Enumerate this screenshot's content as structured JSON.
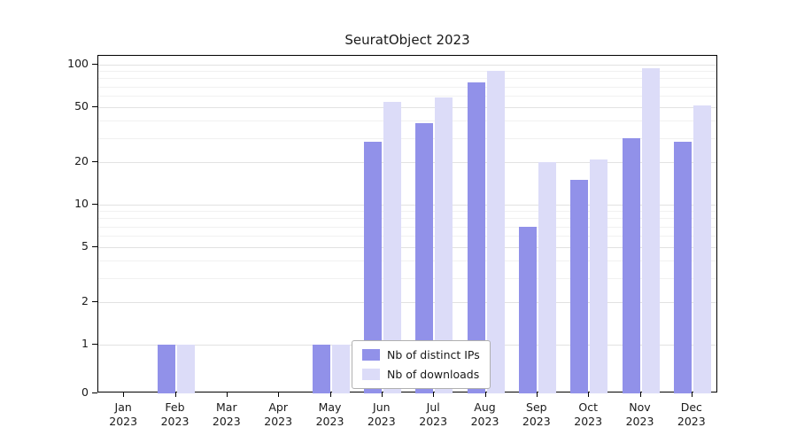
{
  "chart_data": {
    "type": "bar",
    "title": "SeuratObject 2023",
    "categories": [
      "Jan",
      "Feb",
      "Mar",
      "Apr",
      "May",
      "Jun",
      "Jul",
      "Aug",
      "Sep",
      "Oct",
      "Nov",
      "Dec"
    ],
    "category_year": "2023",
    "xtick_labels": [
      "Jan 2023",
      "Feb 2023",
      "Mar 2023",
      "Apr 2023",
      "May 2023",
      "Jun 2023",
      "Jul 2023",
      "Aug 2023",
      "Sep 2023",
      "Oct 2023",
      "Nov 2023",
      "Dec 2023"
    ],
    "series": [
      {
        "name": "Nb of distinct IPs",
        "color": "#9191e9",
        "values": [
          0,
          1,
          0,
          0,
          1,
          28,
          38,
          75,
          7,
          15,
          30,
          28
        ]
      },
      {
        "name": "Nb of downloads",
        "color": "#dcdcf8",
        "values": [
          0,
          1,
          0,
          0,
          1,
          54,
          58,
          90,
          20,
          21,
          95,
          51
        ]
      }
    ],
    "yscale": "symlog",
    "yticks": [
      0,
      1,
      2,
      5,
      10,
      20,
      50,
      100
    ],
    "ytick_labels": [
      "0",
      "1",
      "2",
      "5",
      "10",
      "20",
      "50",
      "100"
    ],
    "ylim": [
      0,
      110
    ],
    "grid": true,
    "legend": {
      "labels": [
        "Nb of distinct IPs",
        "Nb of downloads"
      ],
      "position": "lower center"
    }
  }
}
